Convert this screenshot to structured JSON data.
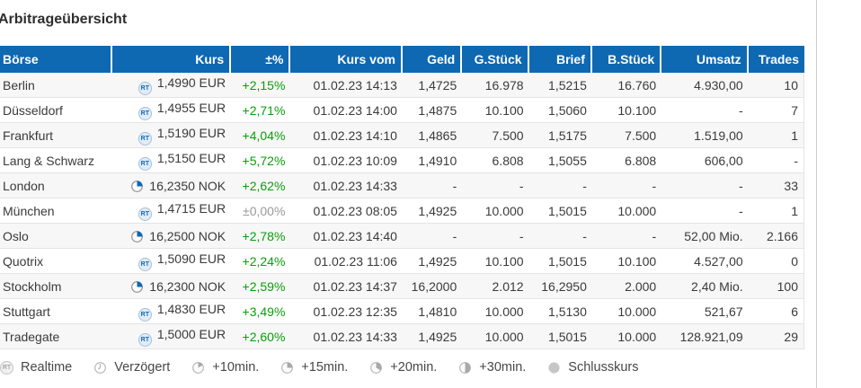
{
  "page": {
    "title": "Arbitrageübersicht"
  },
  "colors": {
    "header_bg": "#0f68b2",
    "icon_blue": "#0f68b2",
    "positive": "#0a9e0a",
    "neutral": "#999999"
  },
  "table": {
    "columns": [
      {
        "key": "boerse",
        "label": "Börse"
      },
      {
        "key": "kurs",
        "label": "Kurs"
      },
      {
        "key": "change",
        "label": "±%"
      },
      {
        "key": "kurs_vom",
        "label": "Kurs vom"
      },
      {
        "key": "geld",
        "label": "Geld"
      },
      {
        "key": "g_stueck",
        "label": "G.Stück"
      },
      {
        "key": "brief",
        "label": "Brief"
      },
      {
        "key": "b_stueck",
        "label": "B.Stück"
      },
      {
        "key": "umsatz",
        "label": "Umsatz"
      },
      {
        "key": "trades",
        "label": "Trades"
      }
    ],
    "rows": [
      {
        "boerse": "Berlin",
        "icon": "realtime",
        "kurs": "1,4990 EUR",
        "change": "+2,15%",
        "kurs_vom": "01.02.23 14:13",
        "geld": "1,4725",
        "g_stueck": "16.978",
        "brief": "1,5215",
        "b_stueck": "16.760",
        "umsatz": "4.930,00",
        "trades": "10"
      },
      {
        "boerse": "Düsseldorf",
        "icon": "realtime",
        "kurs": "1,4955 EUR",
        "change": "+2,71%",
        "kurs_vom": "01.02.23 14:00",
        "geld": "1,4875",
        "g_stueck": "10.100",
        "brief": "1,5060",
        "b_stueck": "10.100",
        "umsatz": "-",
        "trades": "7"
      },
      {
        "boerse": "Frankfurt",
        "icon": "realtime",
        "kurs": "1,5190 EUR",
        "change": "+4,04%",
        "kurs_vom": "01.02.23 14:10",
        "geld": "1,4865",
        "g_stueck": "7.500",
        "brief": "1,5175",
        "b_stueck": "7.500",
        "umsatz": "1.519,00",
        "trades": "1"
      },
      {
        "boerse": "Lang & Schwarz",
        "icon": "realtime",
        "kurs": "1,5150 EUR",
        "change": "+5,72%",
        "kurs_vom": "01.02.23 10:09",
        "geld": "1,4910",
        "g_stueck": "6.808",
        "brief": "1,5055",
        "b_stueck": "6.808",
        "umsatz": "606,00",
        "trades": "-"
      },
      {
        "boerse": "London",
        "icon": "delay-15",
        "kurs": "16,2350 NOK",
        "change": "+2,62%",
        "kurs_vom": "01.02.23 14:33",
        "geld": "-",
        "g_stueck": "-",
        "brief": "-",
        "b_stueck": "-",
        "umsatz": "-",
        "trades": "33"
      },
      {
        "boerse": "München",
        "icon": "realtime",
        "kurs": "1,4715 EUR",
        "change": "±0,00%",
        "kurs_vom": "01.02.23 08:05",
        "geld": "1,4925",
        "g_stueck": "10.000",
        "brief": "1,5015",
        "b_stueck": "10.000",
        "umsatz": "-",
        "trades": "1"
      },
      {
        "boerse": "Oslo",
        "icon": "delay-15",
        "kurs": "16,2500 NOK",
        "change": "+2,78%",
        "kurs_vom": "01.02.23 14:40",
        "geld": "-",
        "g_stueck": "-",
        "brief": "-",
        "b_stueck": "-",
        "umsatz": "52,00 Mio.",
        "trades": "2.166"
      },
      {
        "boerse": "Quotrix",
        "icon": "realtime",
        "kurs": "1,5090 EUR",
        "change": "+2,24%",
        "kurs_vom": "01.02.23 11:06",
        "geld": "1,4925",
        "g_stueck": "10.100",
        "brief": "1,5015",
        "b_stueck": "10.100",
        "umsatz": "4.527,00",
        "trades": "0"
      },
      {
        "boerse": "Stockholm",
        "icon": "delay-15",
        "kurs": "16,2300 NOK",
        "change": "+2,59%",
        "kurs_vom": "01.02.23 14:37",
        "geld": "16,2000",
        "g_stueck": "2.012",
        "brief": "16,2950",
        "b_stueck": "2.000",
        "umsatz": "2,40 Mio.",
        "trades": "100"
      },
      {
        "boerse": "Stuttgart",
        "icon": "realtime",
        "kurs": "1,4830 EUR",
        "change": "+3,49%",
        "kurs_vom": "01.02.23 12:35",
        "geld": "1,4810",
        "g_stueck": "10.000",
        "brief": "1,5130",
        "b_stueck": "10.000",
        "umsatz": "521,67",
        "trades": "6"
      },
      {
        "boerse": "Tradegate",
        "icon": "realtime",
        "kurs": "1,5000 EUR",
        "change": "+2,60%",
        "kurs_vom": "01.02.23 14:33",
        "geld": "1,4925",
        "g_stueck": "10.000",
        "brief": "1,5015",
        "b_stueck": "10.000",
        "umsatz": "128.921,09",
        "trades": "29"
      }
    ]
  },
  "legend": {
    "items": [
      {
        "icon": "realtime",
        "label": "Realtime"
      },
      {
        "icon": "delayed",
        "label": "Verzögert"
      },
      {
        "icon": "delay-10",
        "label": "+10min."
      },
      {
        "icon": "delay-15",
        "label": "+15min."
      },
      {
        "icon": "delay-20",
        "label": "+20min."
      },
      {
        "icon": "delay-30",
        "label": "+30min."
      },
      {
        "icon": "closing",
        "label": "Schlusskurs"
      }
    ]
  }
}
